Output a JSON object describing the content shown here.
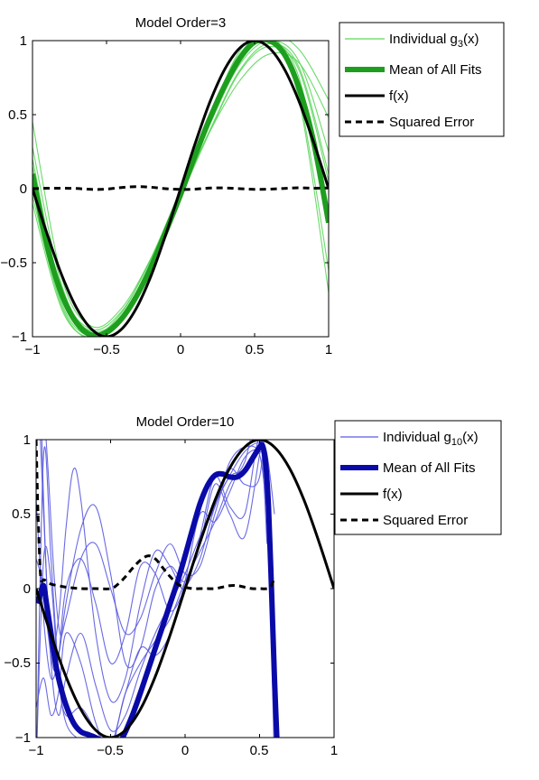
{
  "chart_data": [
    {
      "type": "line",
      "title": "Model Order=3",
      "xlabel": "",
      "ylabel": "",
      "xlim": [
        -1,
        1
      ],
      "ylim": [
        -1,
        1
      ],
      "xticks": [
        -1,
        -0.5,
        0,
        0.5,
        1
      ],
      "yticks": [
        -1,
        -0.5,
        0,
        0.5,
        1
      ],
      "xtick_labels": [
        "−1",
        "−0.5",
        "0",
        "0.5",
        "1"
      ],
      "ytick_labels": [
        "−1",
        "−0.5",
        "0",
        "0.5",
        "1"
      ],
      "legend_placement": "outside-top-right",
      "grid": false,
      "colors": {
        "individual": "#5cd65c",
        "mean": "#1e9e1e",
        "truth": "#000000",
        "error": "#000000"
      },
      "legend": [
        {
          "kind": "individual",
          "label": "Individual g",
          "sub": "3",
          "suffix": "(x)"
        },
        {
          "kind": "mean",
          "label": "Mean of All Fits"
        },
        {
          "kind": "truth",
          "label": "f(x)"
        },
        {
          "kind": "error",
          "label": "Squared Error"
        }
      ],
      "series": [
        {
          "kind": "truth",
          "x": [
            -1,
            -0.9,
            -0.8,
            -0.7,
            -0.6,
            -0.5,
            -0.4,
            -0.3,
            -0.2,
            -0.1,
            0,
            0.1,
            0.2,
            0.3,
            0.4,
            0.5,
            0.6,
            0.7,
            0.8,
            0.9,
            1
          ],
          "y": [
            0,
            -0.31,
            -0.59,
            -0.81,
            -0.95,
            -1,
            -0.95,
            -0.81,
            -0.59,
            -0.31,
            0,
            0.31,
            0.59,
            0.81,
            0.95,
            1,
            0.95,
            0.81,
            0.59,
            0.31,
            0
          ]
        },
        {
          "kind": "mean",
          "x": [
            -1,
            -0.9,
            -0.8,
            -0.7,
            -0.6,
            -0.5,
            -0.4,
            -0.3,
            -0.2,
            -0.1,
            0,
            0.1,
            0.2,
            0.3,
            0.4,
            0.5,
            0.6,
            0.7,
            0.8,
            0.9,
            1
          ],
          "y": [
            0.1,
            -0.39,
            -0.72,
            -0.91,
            -0.99,
            -0.97,
            -0.88,
            -0.73,
            -0.53,
            -0.29,
            -0.04,
            0.23,
            0.48,
            0.7,
            0.88,
            0.99,
            1,
            0.91,
            0.68,
            0.31,
            -0.23
          ]
        },
        {
          "kind": "error",
          "x": [
            -1,
            -0.9,
            -0.8,
            -0.7,
            -0.6,
            -0.5,
            -0.4,
            -0.3,
            -0.2,
            -0.1,
            0,
            0.1,
            0.2,
            0.3,
            0.4,
            0.5,
            0.6,
            0.7,
            0.8,
            0.9,
            1
          ],
          "y": [
            0,
            0.003,
            0.003,
            0.001,
            -0.005,
            -0.003,
            0.008,
            0.014,
            0.01,
            0,
            -0.005,
            -0.003,
            0.004,
            0.005,
            0,
            -0.004,
            -0.003,
            0.002,
            0.006,
            0.003,
            0.005
          ]
        }
      ],
      "individual_fits": [
        {
          "x": [
            -1,
            -0.8,
            -0.6,
            -0.4,
            -0.2,
            0,
            0.2,
            0.4,
            0.6,
            0.8,
            1
          ],
          "y": [
            0.45,
            -0.61,
            -0.93,
            -0.81,
            -0.47,
            -0.04,
            0.39,
            0.73,
            0.91,
            0.85,
            0.48
          ]
        },
        {
          "x": [
            -1,
            -0.8,
            -0.6,
            -0.4,
            -0.2,
            0,
            0.2,
            0.4,
            0.6,
            0.8,
            1
          ],
          "y": [
            -0.05,
            -0.8,
            -1.02,
            -0.88,
            -0.52,
            -0.02,
            0.49,
            0.93,
            1.06,
            0.6,
            -0.7
          ]
        },
        {
          "x": [
            -1,
            -0.8,
            -0.6,
            -0.4,
            -0.2,
            0,
            0.2,
            0.4,
            0.6,
            0.8,
            1
          ],
          "y": [
            0.28,
            -0.66,
            -0.97,
            -0.84,
            -0.47,
            -0.01,
            0.44,
            0.84,
            1.0,
            0.86,
            0.25
          ]
        },
        {
          "x": [
            -1,
            -0.8,
            -0.6,
            -0.4,
            -0.2,
            0,
            0.2,
            0.4,
            0.6,
            0.8,
            1
          ],
          "y": [
            0.0,
            -0.78,
            -1.0,
            -0.86,
            -0.51,
            -0.05,
            0.44,
            0.86,
            1.01,
            0.75,
            -0.2
          ]
        },
        {
          "x": [
            -1,
            -0.8,
            -0.6,
            -0.4,
            -0.2,
            0,
            0.2,
            0.4,
            0.6,
            0.8,
            1
          ],
          "y": [
            0.2,
            -0.72,
            -0.96,
            -0.86,
            -0.52,
            -0.06,
            0.39,
            0.79,
            0.96,
            0.8,
            0.05
          ]
        },
        {
          "x": [
            -1,
            -0.8,
            -0.6,
            -0.4,
            -0.2,
            0,
            0.2,
            0.4,
            0.6,
            0.8,
            1
          ],
          "y": [
            -0.1,
            -0.82,
            -1.01,
            -0.9,
            -0.55,
            -0.03,
            0.5,
            0.91,
            1.03,
            0.62,
            -0.55
          ]
        },
        {
          "x": [
            -1,
            -0.8,
            -0.6,
            -0.4,
            -0.2,
            0,
            0.2,
            0.4,
            0.6,
            0.8,
            1
          ],
          "y": [
            0.15,
            -0.74,
            -0.99,
            -0.88,
            -0.5,
            -0.02,
            0.46,
            0.88,
            1.04,
            0.94,
            0.6
          ]
        },
        {
          "x": [
            -1,
            -0.8,
            -0.6,
            -0.4,
            -0.2,
            0,
            0.2,
            0.4,
            0.6,
            0.8,
            1
          ],
          "y": [
            0.05,
            -0.7,
            -0.95,
            -0.83,
            -0.48,
            -0.04,
            0.4,
            0.8,
            0.98,
            0.82,
            0.1
          ]
        }
      ]
    },
    {
      "type": "line",
      "title": "Model Order=10",
      "xlabel": "",
      "ylabel": "",
      "xlim": [
        -1,
        1
      ],
      "ylim": [
        -1,
        1
      ],
      "xticks": [
        -1,
        -0.5,
        0,
        0.5,
        1
      ],
      "yticks": [
        -1,
        -0.5,
        0,
        0.5,
        1
      ],
      "xtick_labels": [
        "−1",
        "−0.5",
        "0",
        "0.5",
        "1"
      ],
      "ytick_labels": [
        "−1",
        "−0.5",
        "0",
        "0.5",
        "1"
      ],
      "legend_placement": "top-right",
      "grid": false,
      "colors": {
        "individual": "#5a5ae0",
        "mean": "#0a0aa8",
        "truth": "#000000",
        "error": "#000000"
      },
      "legend": [
        {
          "kind": "individual",
          "label": "Individual g",
          "sub": "10",
          "suffix": "(x)"
        },
        {
          "kind": "mean",
          "label": "Mean of All Fits"
        },
        {
          "kind": "truth",
          "label": "f(x)"
        },
        {
          "kind": "error",
          "label": "Squared Error"
        }
      ],
      "series": [
        {
          "kind": "truth",
          "x": [
            -1,
            -0.9,
            -0.8,
            -0.7,
            -0.6,
            -0.5,
            -0.4,
            -0.3,
            -0.2,
            -0.1,
            0,
            0.1,
            0.2,
            0.3,
            0.4,
            0.5,
            0.6,
            0.7,
            0.8,
            0.9,
            1
          ],
          "y": [
            0,
            -0.31,
            -0.59,
            -0.81,
            -0.95,
            -1,
            -0.95,
            -0.81,
            -0.59,
            -0.31,
            0,
            0.31,
            0.59,
            0.81,
            0.95,
            1,
            0.95,
            0.81,
            0.59,
            0.31,
            0
          ]
        },
        {
          "kind": "mean",
          "x": [
            -0.99,
            -0.97,
            -0.95,
            -0.93,
            -0.9,
            -0.87,
            -0.84,
            -0.8,
            -0.75,
            -0.7,
            -0.65,
            -0.6,
            -0.55,
            -0.5,
            -0.45,
            -0.4,
            -0.35,
            -0.3,
            -0.25,
            -0.2,
            -0.15,
            -0.1,
            -0.05,
            0,
            0.05,
            0.1,
            0.15,
            0.2,
            0.25,
            0.3,
            0.35,
            0.4,
            0.45,
            0.5,
            0.52,
            0.54,
            0.56,
            0.58,
            0.6,
            0.62
          ],
          "y": [
            -0.1,
            -0.03,
            0.02,
            -0.1,
            -0.3,
            -0.5,
            -0.64,
            -0.78,
            -0.9,
            -0.96,
            -0.98,
            -1.0,
            -1.03,
            -1.07,
            -1.05,
            -0.96,
            -0.84,
            -0.7,
            -0.55,
            -0.4,
            -0.25,
            -0.1,
            0.05,
            0.22,
            0.4,
            0.57,
            0.69,
            0.76,
            0.77,
            0.75,
            0.75,
            0.79,
            0.87,
            0.95,
            0.96,
            0.85,
            0.55,
            0.0,
            -0.6,
            -1.1
          ]
        },
        {
          "kind": "error",
          "x": [
            -1,
            -0.99,
            -0.98,
            -0.97,
            -0.96,
            -0.95,
            -0.93,
            -0.9,
            -0.85,
            -0.8,
            -0.7,
            -0.6,
            -0.5,
            -0.45,
            -0.4,
            -0.35,
            -0.3,
            -0.25,
            -0.2,
            -0.15,
            -0.1,
            -0.05,
            0,
            0.05,
            0.1,
            0.15,
            0.2,
            0.25,
            0.3,
            0.35,
            0.4,
            0.45,
            0.5,
            0.55,
            0.58,
            0.6
          ],
          "y": [
            1,
            0.6,
            0.3,
            0.08,
            0.05,
            0.06,
            0.05,
            0.03,
            0.02,
            0.01,
            0.0,
            0.0,
            0.0,
            0.03,
            0.08,
            0.14,
            0.19,
            0.22,
            0.2,
            0.14,
            0.08,
            0.03,
            0.01,
            0.0,
            0.0,
            0.0,
            0.0,
            0.01,
            0.02,
            0.02,
            0.01,
            0.0,
            0.0,
            0.0,
            0.02,
            0.08
          ]
        }
      ],
      "individual_fits": [
        {
          "x": [
            -1,
            -0.95,
            -0.9,
            -0.85,
            -0.8,
            -0.7,
            -0.6,
            -0.5,
            -0.4,
            -0.3,
            -0.2,
            -0.1,
            0,
            0.1,
            0.2,
            0.3,
            0.4,
            0.5,
            0.55,
            0.6
          ],
          "y": [
            -1.3,
            0.9,
            0.2,
            -0.55,
            -0.9,
            -1.02,
            -1.05,
            -1.0,
            -0.95,
            -0.8,
            -0.6,
            -0.3,
            0.0,
            0.3,
            0.56,
            0.76,
            0.92,
            0.98,
            0.9,
            0.5
          ]
        },
        {
          "x": [
            -1,
            -0.96,
            -0.92,
            -0.88,
            -0.84,
            -0.8,
            -0.7,
            -0.6,
            -0.5,
            -0.4,
            -0.3,
            -0.2,
            -0.1,
            0,
            0.1,
            0.2,
            0.3,
            0.4,
            0.5,
            0.55,
            0.6
          ],
          "y": [
            0.2,
            0.05,
            -0.3,
            -0.55,
            -0.4,
            -0.1,
            0.4,
            0.55,
            0.1,
            -0.5,
            -0.4,
            0.0,
            0.15,
            0.05,
            0.3,
            0.7,
            0.5,
            0.35,
            0.9,
            1.2,
            1.5
          ]
        },
        {
          "x": [
            -0.97,
            -0.94,
            -0.9,
            -0.85,
            -0.8,
            -0.75,
            -0.7,
            -0.6,
            -0.5,
            -0.4,
            -0.3,
            -0.2,
            -0.1,
            0,
            0.1,
            0.2,
            0.3,
            0.4,
            0.5,
            0.55
          ],
          "y": [
            1.3,
            0.3,
            -0.4,
            -0.2,
            0.4,
            0.8,
            0.6,
            -0.3,
            -0.75,
            -0.6,
            -0.1,
            0.25,
            0.15,
            0.0,
            0.35,
            0.75,
            0.55,
            0.5,
            1.0,
            0.3
          ]
        },
        {
          "x": [
            -1,
            -0.95,
            -0.9,
            -0.85,
            -0.8,
            -0.7,
            -0.6,
            -0.5,
            -0.4,
            -0.3,
            -0.2,
            -0.1,
            0,
            0.1,
            0.2,
            0.3,
            0.4,
            0.5,
            0.55,
            0.6
          ],
          "y": [
            -1.2,
            0.2,
            0.05,
            -0.6,
            -0.85,
            -0.8,
            -0.95,
            -1.05,
            -0.7,
            -0.4,
            -0.45,
            -0.3,
            0.05,
            0.5,
            0.45,
            0.65,
            0.88,
            0.92,
            0.7,
            -1.2
          ]
        },
        {
          "x": [
            -1,
            -0.95,
            -0.9,
            -0.85,
            -0.8,
            -0.7,
            -0.6,
            -0.5,
            -0.4,
            -0.3,
            -0.2,
            -0.1,
            0,
            0.1,
            0.2,
            0.3,
            0.4,
            0.5,
            0.55
          ],
          "y": [
            0.6,
            -0.2,
            -0.6,
            -0.45,
            0.0,
            0.2,
            -0.1,
            -0.5,
            -0.3,
            0.15,
            0.1,
            -0.15,
            0.0,
            0.2,
            0.55,
            0.75,
            0.8,
            0.95,
            1.3
          ]
        },
        {
          "x": [
            -0.98,
            -0.95,
            -0.9,
            -0.85,
            -0.8,
            -0.7,
            -0.6,
            -0.5,
            -0.4,
            -0.3,
            -0.2,
            -0.1,
            0,
            0.1,
            0.2,
            0.3,
            0.4,
            0.5,
            0.55
          ],
          "y": [
            1.2,
            0.5,
            -0.5,
            -0.85,
            -0.6,
            -0.3,
            -0.65,
            -0.95,
            -0.85,
            -0.55,
            -0.3,
            -0.1,
            0.1,
            0.35,
            0.55,
            0.85,
            0.95,
            0.9,
            0.5
          ]
        },
        {
          "x": [
            -1,
            -0.95,
            -0.9,
            -0.85,
            -0.8,
            -0.7,
            -0.6,
            -0.5,
            -0.45,
            -0.4,
            -0.3,
            -0.2,
            -0.1,
            0,
            0.1,
            0.2,
            0.3,
            0.4,
            0.5,
            0.55
          ],
          "y": [
            -0.8,
            -0.6,
            -0.85,
            -0.7,
            -0.3,
            -0.5,
            -0.9,
            -1.1,
            -0.9,
            -0.7,
            -0.5,
            -0.35,
            -0.2,
            0.05,
            0.25,
            0.45,
            0.7,
            0.85,
            1.2,
            0.6
          ]
        },
        {
          "x": [
            -0.96,
            -0.92,
            -0.88,
            -0.84,
            -0.8,
            -0.7,
            -0.6,
            -0.5,
            -0.4,
            -0.3,
            -0.2,
            -0.1,
            0,
            0.1,
            0.2,
            0.3,
            0.4,
            0.5,
            0.55
          ],
          "y": [
            1.4,
            0.8,
            0.1,
            -0.3,
            -0.2,
            0.2,
            0.3,
            0.0,
            -0.3,
            -0.2,
            0.1,
            0.3,
            0.1,
            0.15,
            0.5,
            0.8,
            0.7,
            0.75,
            1.3
          ]
        }
      ]
    }
  ]
}
